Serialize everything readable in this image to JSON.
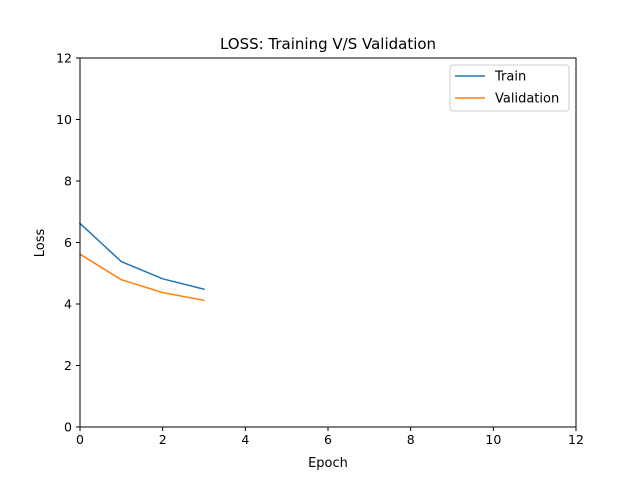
{
  "chart_data": {
    "type": "line",
    "title": "LOSS: Training V/S Validation",
    "xlabel": "Epoch",
    "ylabel": "Loss",
    "xlim": [
      0,
      12
    ],
    "ylim": [
      0,
      12
    ],
    "xticks": [
      "0",
      "2",
      "4",
      "6",
      "8",
      "10",
      "12"
    ],
    "yticks": [
      "0",
      "2",
      "4",
      "6",
      "8",
      "10",
      "12"
    ],
    "grid": false,
    "legend_position": "top-right",
    "series": [
      {
        "name": "Train",
        "color": "#1f77b4",
        "x": [
          0,
          1,
          2,
          3
        ],
        "y": [
          6.62,
          5.38,
          4.82,
          4.48
        ]
      },
      {
        "name": "Validation",
        "color": "#ff7f0e",
        "x": [
          0,
          1,
          2,
          3
        ],
        "y": [
          5.62,
          4.79,
          4.37,
          4.12
        ]
      }
    ]
  }
}
